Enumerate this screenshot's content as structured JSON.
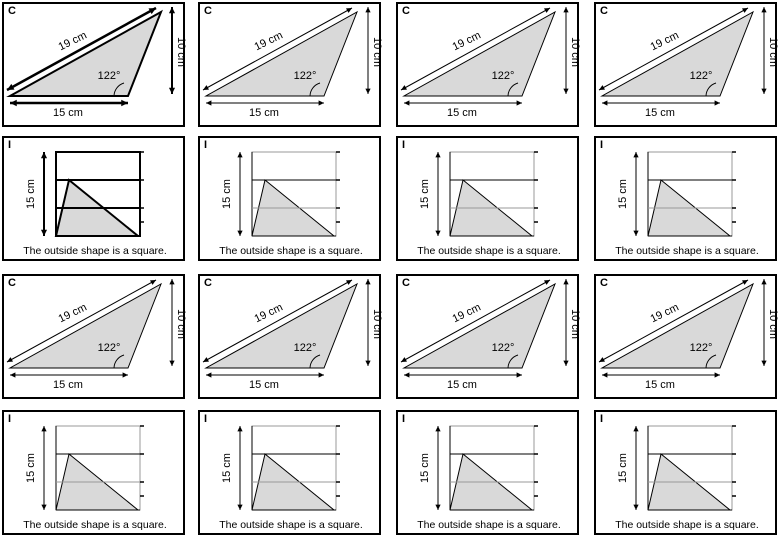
{
  "colors": {
    "fill": "#d9d9d9",
    "line": "#000000",
    "grid_light": "#999999"
  },
  "triangle_card": {
    "tag": "C",
    "side_long": "19 cm",
    "side_base": "15 cm",
    "side_short": "10 cm",
    "angle": "122°"
  },
  "square_card": {
    "tag": "I",
    "side": "15 cm",
    "caption": "The outside shape is a square."
  },
  "rows": [
    {
      "kind": "triangle",
      "cards": [
        {
          "style": "bold"
        },
        {
          "style": "thin"
        },
        {
          "style": "thin"
        },
        {
          "style": "thin"
        }
      ]
    },
    {
      "kind": "square",
      "cards": [
        {
          "style": "bold"
        },
        {
          "style": "thin"
        },
        {
          "style": "thin"
        },
        {
          "style": "thin"
        }
      ]
    },
    {
      "kind": "triangle",
      "cards": [
        {
          "style": "thin"
        },
        {
          "style": "thin"
        },
        {
          "style": "thin"
        },
        {
          "style": "thin"
        }
      ]
    },
    {
      "kind": "square",
      "cards": [
        {
          "style": "thin"
        },
        {
          "style": "thin"
        },
        {
          "style": "thin"
        },
        {
          "style": "thin"
        }
      ]
    }
  ]
}
